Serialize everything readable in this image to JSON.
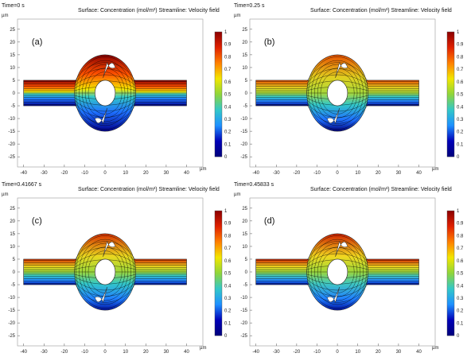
{
  "figure": {
    "colorbar": {
      "ticks": [
        "1",
        "0.9",
        "0.8",
        "0.7",
        "0.6",
        "0.5",
        "0.4",
        "0.3",
        "0.2",
        "0.1",
        "0"
      ],
      "colors": [
        "#8b0000",
        "#e02000",
        "#ff7f00",
        "#f2e600",
        "#8fd53a",
        "#33c8c8",
        "#1e90ff",
        "#0000b8",
        "#00007a"
      ]
    },
    "axes": {
      "unit": "µm",
      "x_ticks": [
        "-40",
        "-30",
        "-20",
        "-10",
        "0",
        "10",
        "20",
        "30",
        "40"
      ],
      "y_ticks": [
        "25",
        "20",
        "15",
        "10",
        "5",
        "0",
        "-5",
        "-10",
        "-15",
        "-20",
        "-25"
      ]
    },
    "panels": [
      {
        "time": "Time=0 s",
        "header": "Surface: Concentration (mol/m³)  Streamline: Velocity field",
        "label": "(a)"
      },
      {
        "time": "Time=0.25 s",
        "header": "Surface: Concentration (mol/m³)  Streamline: Velocity field",
        "label": "(b)"
      },
      {
        "time": "Time=0.41667 s",
        "header": "Surface: Concentration (mol/m³)  Streamline: Velocity field",
        "label": "(c)"
      },
      {
        "time": "Time=0.45833 s",
        "header": "Surface: Concentration (mol/m³)  Streamline: Velocity field",
        "label": "(d)"
      }
    ]
  }
}
